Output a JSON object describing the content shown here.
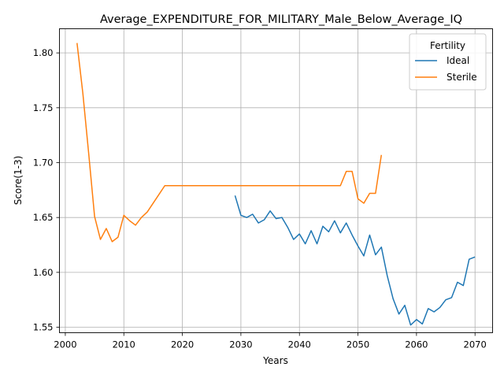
{
  "chart_data": {
    "type": "line",
    "title": "Average_EXPENDITURE_FOR_MILITARY_Male_Below_Average_IQ",
    "xlabel": "Years",
    "ylabel": "Score(1-3)",
    "xlim": [
      1999,
      2073
    ],
    "ylim": [
      1.545,
      1.822
    ],
    "xticks": [
      2000,
      2010,
      2020,
      2030,
      2040,
      2050,
      2060,
      2070
    ],
    "yticks": [
      1.55,
      1.6,
      1.65,
      1.7,
      1.75,
      1.8
    ],
    "xtick_labels": [
      "2000",
      "2010",
      "2020",
      "2030",
      "2040",
      "2050",
      "2060",
      "2070"
    ],
    "ytick_labels": [
      "1.55",
      "1.60",
      "1.65",
      "1.70",
      "1.75",
      "1.80"
    ],
    "grid": true,
    "legend": {
      "title": "Fertility",
      "placement": "top-right"
    },
    "series": [
      {
        "name": "Ideal",
        "color": "#1f77b4",
        "x": [
          2029,
          2030,
          2031,
          2032,
          2033,
          2034,
          2035,
          2036,
          2037,
          2038,
          2039,
          2040,
          2041,
          2042,
          2043,
          2044,
          2045,
          2046,
          2047,
          2048,
          2049,
          2050,
          2051,
          2052,
          2053,
          2054,
          2055,
          2056,
          2057,
          2058,
          2059,
          2060,
          2061,
          2062,
          2063,
          2064,
          2065,
          2066,
          2067,
          2068,
          2069,
          2070
        ],
        "y": [
          1.67,
          1.652,
          1.65,
          1.653,
          1.645,
          1.648,
          1.656,
          1.649,
          1.65,
          1.641,
          1.63,
          1.635,
          1.626,
          1.638,
          1.626,
          1.642,
          1.637,
          1.647,
          1.636,
          1.645,
          1.634,
          1.624,
          1.615,
          1.634,
          1.616,
          1.623,
          1.597,
          1.576,
          1.562,
          1.57,
          1.552,
          1.557,
          1.553,
          1.567,
          1.564,
          1.568,
          1.575,
          1.577,
          1.591,
          1.588,
          1.612,
          1.614
        ]
      },
      {
        "name": "Sterile",
        "color": "#ff7f0e",
        "x": [
          2002,
          2003,
          2004,
          2005,
          2006,
          2007,
          2008,
          2009,
          2010,
          2011,
          2012,
          2013,
          2014,
          2015,
          2016,
          2017,
          2018,
          2019,
          2020,
          2021,
          2022,
          2023,
          2024,
          2025,
          2026,
          2027,
          2028,
          2029,
          2030,
          2031,
          2032,
          2033,
          2034,
          2035,
          2036,
          2037,
          2038,
          2039,
          2040,
          2041,
          2042,
          2043,
          2044,
          2045,
          2046,
          2047,
          2048,
          2049,
          2050,
          2051,
          2052,
          2053,
          2054
        ],
        "y": [
          1.809,
          1.763,
          1.708,
          1.651,
          1.63,
          1.64,
          1.628,
          1.632,
          1.652,
          1.647,
          1.643,
          1.65,
          1.655,
          1.663,
          1.671,
          1.679,
          1.679,
          1.679,
          1.679,
          1.679,
          1.679,
          1.679,
          1.679,
          1.679,
          1.679,
          1.679,
          1.679,
          1.679,
          1.679,
          1.679,
          1.679,
          1.679,
          1.679,
          1.679,
          1.679,
          1.679,
          1.679,
          1.679,
          1.679,
          1.679,
          1.679,
          1.679,
          1.679,
          1.679,
          1.679,
          1.679,
          1.692,
          1.692,
          1.667,
          1.663,
          1.672,
          1.672,
          1.707
        ]
      }
    ]
  }
}
